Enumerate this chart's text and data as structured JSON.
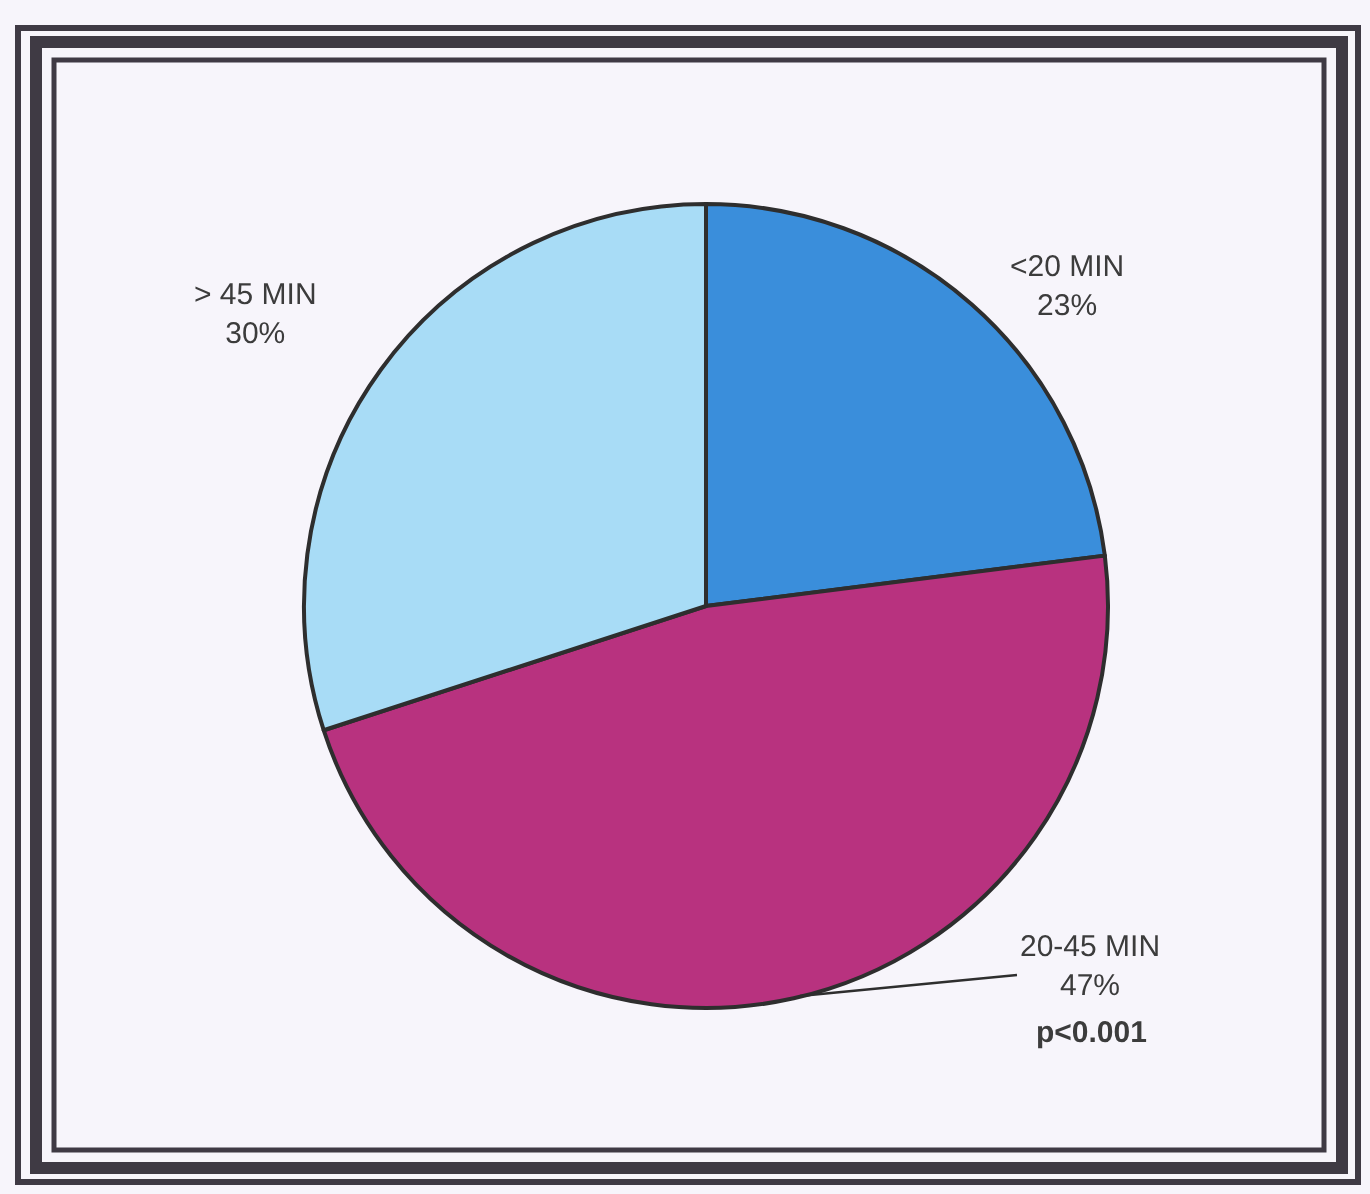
{
  "chart_data": {
    "type": "pie",
    "categories": [
      "<20 MIN",
      "20-45 MIN",
      "> 45 MIN"
    ],
    "values": [
      23,
      47,
      30
    ],
    "value_labels": [
      "23%",
      "47%",
      "30%"
    ],
    "colors": [
      "#3a8edb",
      "#b8327f",
      "#a8dcf6"
    ],
    "annotations": [
      "p<0.001"
    ]
  }
}
